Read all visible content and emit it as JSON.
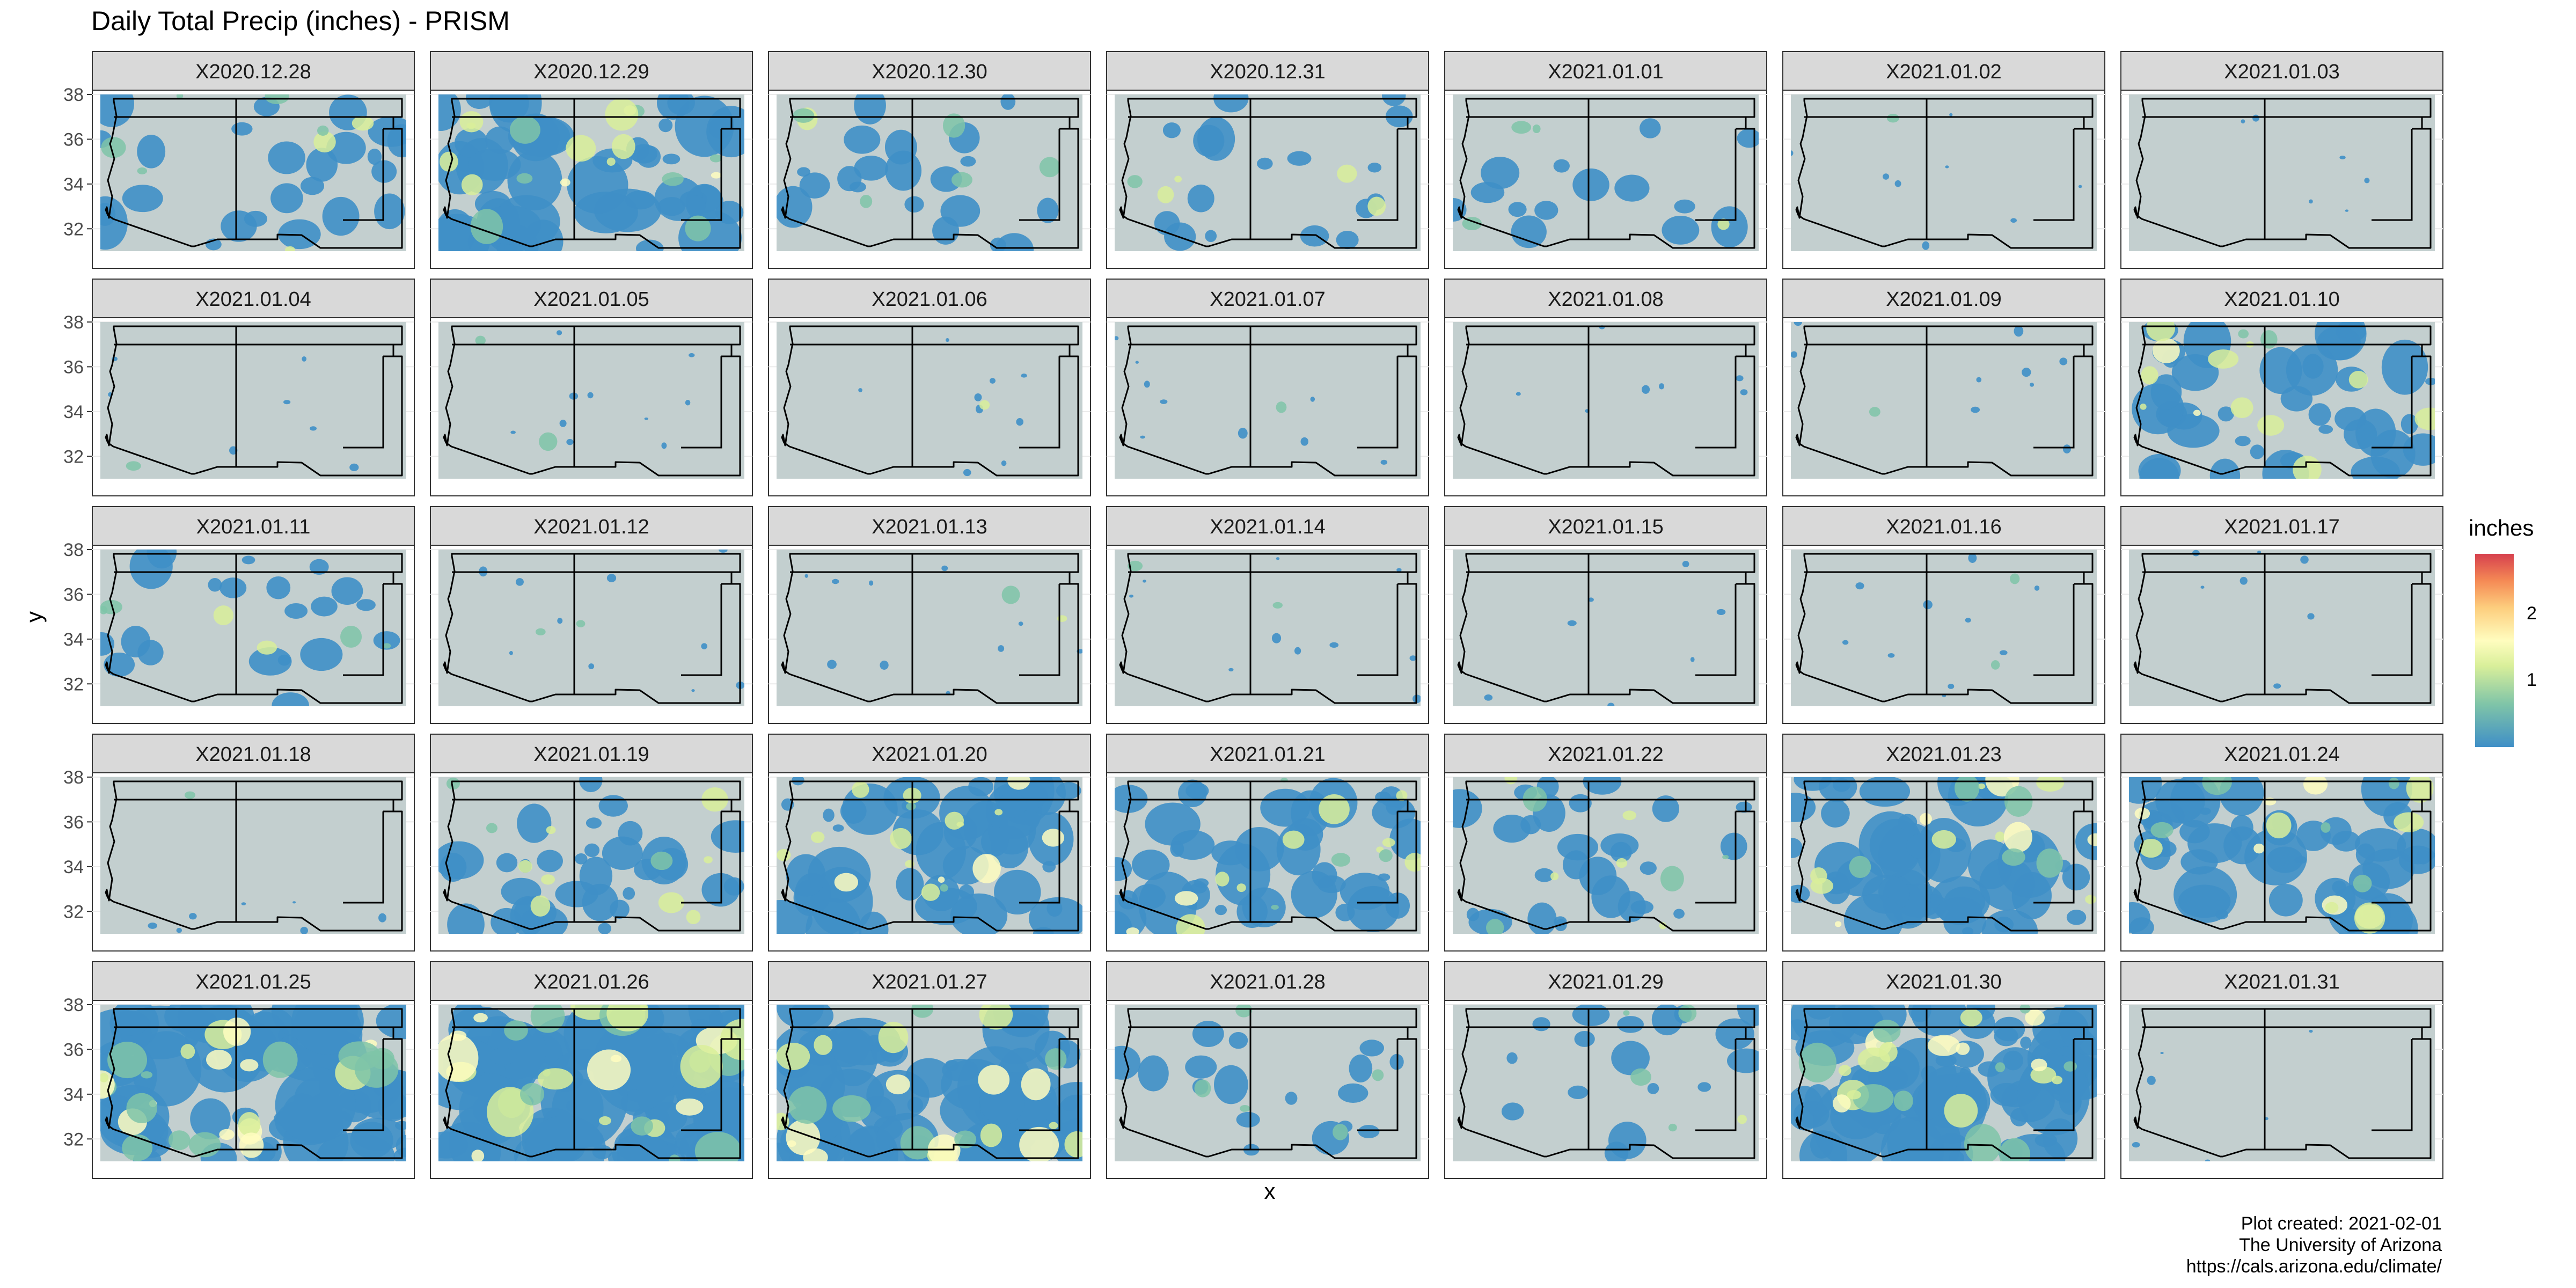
{
  "chart_data": {
    "type": "heatmap",
    "title": "Daily Total Precip (inches) - PRISM",
    "xlabel": "x",
    "ylabel": "y",
    "y_ticks": [
      "32",
      "34",
      "36",
      "38"
    ],
    "ylim": [
      31,
      38
    ],
    "legend": {
      "title": "inches",
      "ticks": [
        "1",
        "2"
      ],
      "range": [
        0,
        2.9
      ],
      "placement": "right"
    },
    "colorscale": [
      "#3f8fc7",
      "#7fc4a8",
      "#d9ef9a",
      "#fffdbf",
      "#fdce7e",
      "#f58a55",
      "#d6404e"
    ],
    "background_color": "#c3cfcf",
    "panels": [
      {
        "label": "X2020.12.28",
        "intensity": 0.25
      },
      {
        "label": "X2020.12.29",
        "intensity": 0.6
      },
      {
        "label": "X2020.12.30",
        "intensity": 0.2
      },
      {
        "label": "X2020.12.31",
        "intensity": 0.15
      },
      {
        "label": "X2021.01.01",
        "intensity": 0.12
      },
      {
        "label": "X2021.01.02",
        "intensity": 0.03
      },
      {
        "label": "X2021.01.03",
        "intensity": 0.0
      },
      {
        "label": "X2021.01.04",
        "intensity": 0.02
      },
      {
        "label": "X2021.01.05",
        "intensity": 0.05
      },
      {
        "label": "X2021.01.06",
        "intensity": 0.04
      },
      {
        "label": "X2021.01.07",
        "intensity": 0.04
      },
      {
        "label": "X2021.01.08",
        "intensity": 0.01
      },
      {
        "label": "X2021.01.09",
        "intensity": 0.04
      },
      {
        "label": "X2021.01.10",
        "intensity": 0.45
      },
      {
        "label": "X2021.01.11",
        "intensity": 0.2
      },
      {
        "label": "X2021.01.12",
        "intensity": 0.05
      },
      {
        "label": "X2021.01.13",
        "intensity": 0.05
      },
      {
        "label": "X2021.01.14",
        "intensity": 0.05
      },
      {
        "label": "X2021.01.15",
        "intensity": 0.01
      },
      {
        "label": "X2021.01.16",
        "intensity": 0.05
      },
      {
        "label": "X2021.01.17",
        "intensity": 0.01
      },
      {
        "label": "X2021.01.18",
        "intensity": 0.02
      },
      {
        "label": "X2021.01.19",
        "intensity": 0.35
      },
      {
        "label": "X2021.01.20",
        "intensity": 0.55
      },
      {
        "label": "X2021.01.21",
        "intensity": 0.5
      },
      {
        "label": "X2021.01.22",
        "intensity": 0.3
      },
      {
        "label": "X2021.01.23",
        "intensity": 0.55
      },
      {
        "label": "X2021.01.24",
        "intensity": 0.55
      },
      {
        "label": "X2021.01.25",
        "intensity": 0.85
      },
      {
        "label": "X2021.01.26",
        "intensity": 0.95
      },
      {
        "label": "X2021.01.27",
        "intensity": 0.75
      },
      {
        "label": "X2021.01.28",
        "intensity": 0.15
      },
      {
        "label": "X2021.01.29",
        "intensity": 0.15
      },
      {
        "label": "X2021.01.30",
        "intensity": 0.8
      },
      {
        "label": "X2021.01.31",
        "intensity": 0.0
      }
    ]
  },
  "caption": {
    "line1": "Plot created: 2021-02-01",
    "line2": "The University of Arizona",
    "line3": "https://cals.arizona.edu/climate/"
  }
}
